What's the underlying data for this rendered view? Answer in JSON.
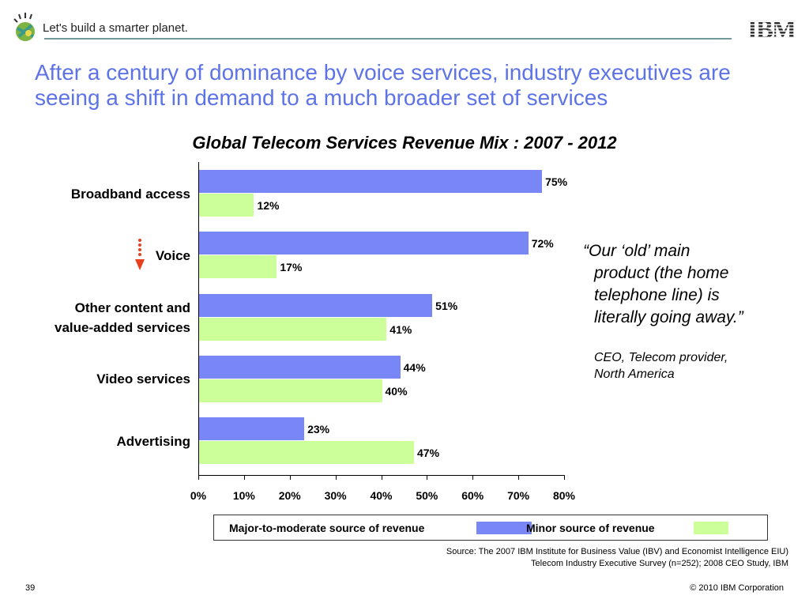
{
  "header": {
    "tagline": "Let's build a smarter planet.",
    "logo": "IBM"
  },
  "slide": {
    "title": "After a century of dominance by voice services, industry executives are seeing a shift in demand to a much broader set of services",
    "quote": {
      "line1": "“Our ‘old’ main",
      "line2": "product (the home",
      "line3": "telephone line) is",
      "line4": "literally going away.”"
    },
    "attribution": {
      "line1": "CEO, Telecom provider,",
      "line2": "North America"
    },
    "source": {
      "line1": "Source: The 2007 IBM Institute for Business Value (IBV)  and Economist Intelligence EIU)",
      "line2": "Telecom Industry Executive Survey (n=252); 2008 CEO Study, IBM"
    },
    "page_number": "39",
    "copyright": "© 2010 IBM Corporation"
  },
  "chart_data": {
    "type": "bar",
    "orientation": "horizontal",
    "title": "Global Telecom Services Revenue  Mix : 2007 - 2012",
    "categories": [
      [
        "Broadband access"
      ],
      [
        "Voice"
      ],
      [
        "Other content and",
        "value-added services"
      ],
      [
        "Video services"
      ],
      [
        "Advertising"
      ]
    ],
    "series": [
      {
        "name": "Major-to-moderate source of revenue",
        "color": "#7887f5",
        "values": [
          75,
          72,
          51,
          44,
          23
        ],
        "labels": [
          "75%",
          "72%",
          "51%",
          "44%",
          "23%"
        ]
      },
      {
        "name": "Minor source of revenue",
        "color": "#ccff99",
        "values": [
          12,
          17,
          41,
          40,
          47
        ],
        "labels": [
          "12%",
          "17%",
          "41%",
          "40%",
          "47%"
        ]
      }
    ],
    "xlim": [
      0,
      80
    ],
    "ticks": [
      "0%",
      "10%",
      "20%",
      "30%",
      "40%",
      "50%",
      "60%",
      "70%",
      "80%"
    ],
    "tick_values": [
      0,
      10,
      20,
      30,
      40,
      50,
      60,
      70,
      80
    ],
    "legend": "bottom",
    "grid": false,
    "annotation": "voice-declining-arrow"
  }
}
